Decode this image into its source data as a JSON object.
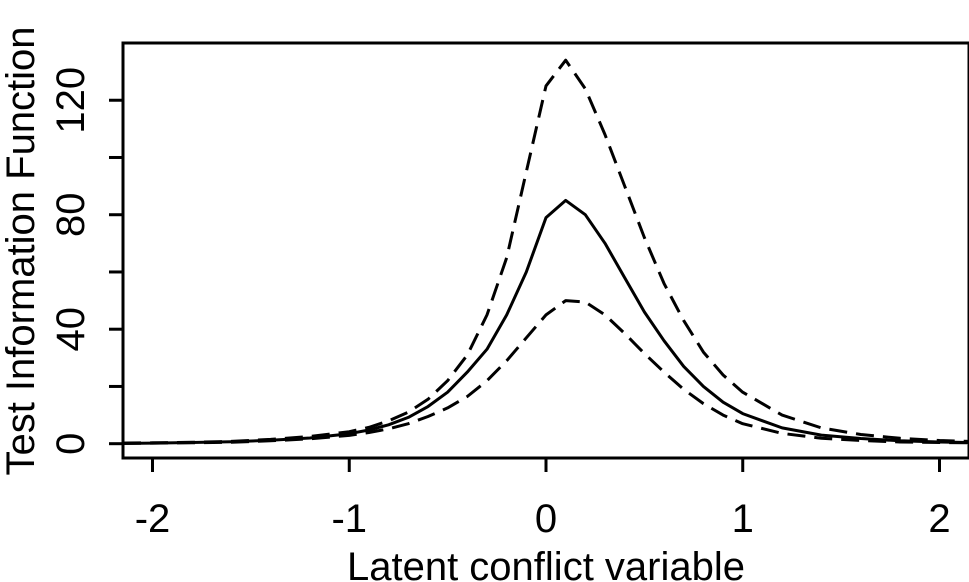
{
  "chart_data": {
    "type": "line",
    "title": "",
    "xlabel": "Latent conflict variable",
    "ylabel": "Test Information Function",
    "xlim": [
      -2.15,
      2.15
    ],
    "ylim": [
      -5,
      140
    ],
    "xticks": [
      -2,
      -1,
      0,
      1,
      2
    ],
    "xtick_labels": [
      "-2",
      "-1",
      "0",
      "1",
      "2"
    ],
    "yticks": [
      0,
      40,
      80,
      120
    ],
    "ytick_labels": [
      "0",
      "40",
      "80",
      "120"
    ],
    "yticks_minor": [
      20,
      60,
      100
    ],
    "grid": false,
    "legend": "none",
    "x": [
      -2.15,
      -2.0,
      -1.8,
      -1.6,
      -1.4,
      -1.2,
      -1.0,
      -0.9,
      -0.8,
      -0.7,
      -0.6,
      -0.5,
      -0.4,
      -0.3,
      -0.2,
      -0.1,
      0.0,
      0.1,
      0.2,
      0.3,
      0.4,
      0.5,
      0.6,
      0.7,
      0.8,
      0.9,
      1.0,
      1.2,
      1.4,
      1.6,
      1.8,
      2.0,
      2.15
    ],
    "series": [
      {
        "line_style": "dashed",
        "values": [
          0.2,
          0.3,
          0.5,
          0.8,
          1.5,
          2.5,
          4.2,
          5.7,
          8.0,
          11.0,
          15.5,
          22.0,
          31.0,
          45.0,
          65.0,
          95.0,
          125.0,
          134.0,
          124.0,
          108.0,
          90.0,
          72.0,
          56.0,
          43.0,
          32.0,
          24.0,
          18.0,
          10.0,
          5.5,
          3.2,
          1.9,
          1.1,
          0.8
        ]
      },
      {
        "line_style": "solid",
        "values": [
          0.1,
          0.2,
          0.4,
          0.7,
          1.2,
          2.0,
          3.5,
          4.8,
          6.6,
          9.2,
          13.0,
          18.0,
          25.0,
          33.0,
          45.0,
          60.0,
          79.0,
          85.0,
          80.0,
          70.0,
          58.0,
          46.0,
          36.0,
          27.0,
          20.0,
          14.5,
          10.5,
          5.5,
          3.0,
          1.8,
          1.0,
          0.6,
          0.4
        ]
      },
      {
        "line_style": "dashed",
        "values": [
          0.1,
          0.2,
          0.3,
          0.5,
          1.0,
          1.7,
          2.9,
          3.9,
          5.2,
          7.0,
          9.5,
          12.5,
          16.5,
          22.0,
          29.0,
          37.0,
          45.0,
          50.0,
          49.5,
          45.0,
          38.5,
          31.5,
          25.0,
          19.0,
          14.0,
          10.0,
          7.0,
          3.6,
          1.9,
          1.1,
          0.6,
          0.4,
          0.3
        ]
      }
    ]
  }
}
